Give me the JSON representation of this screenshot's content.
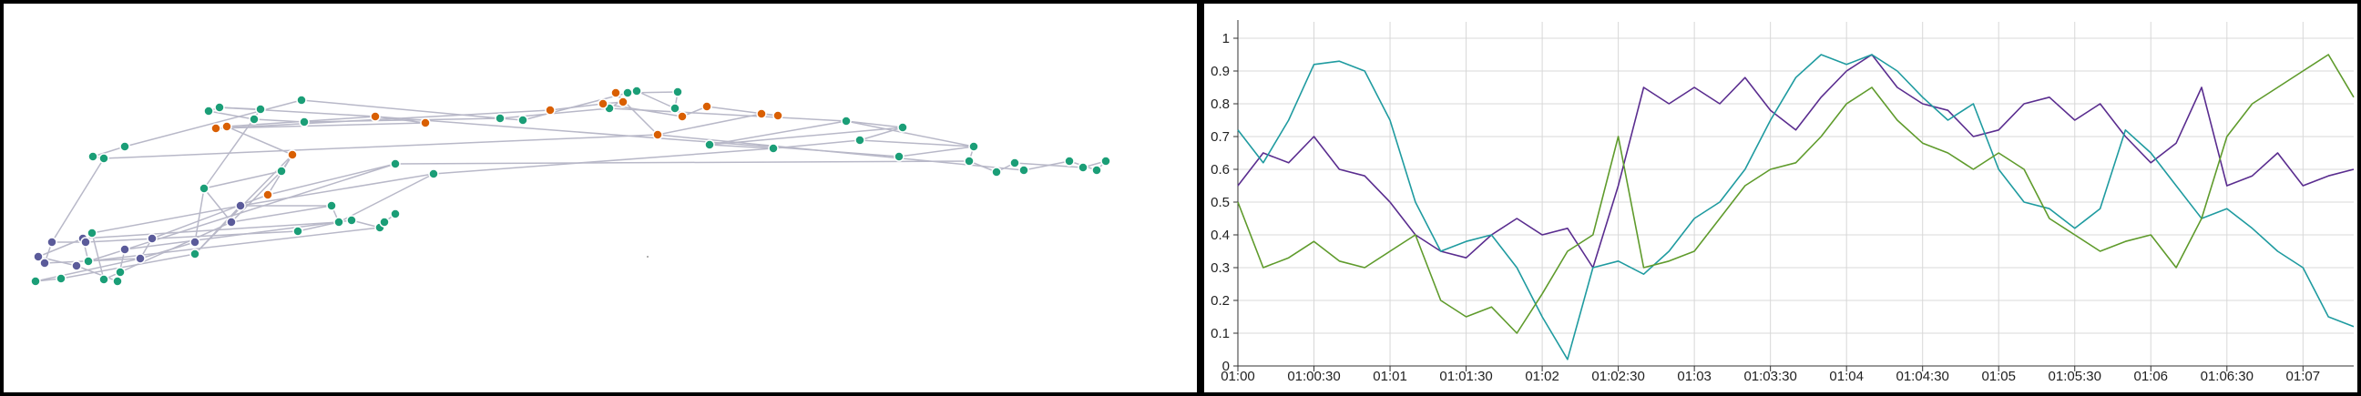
{
  "network_graph": {
    "colors": {
      "node_green": "#1b9e77",
      "node_purple": "#5b5b9a",
      "node_orange": "#d95f02",
      "edge": "#b8b8c8"
    },
    "node_counts": {
      "green": 48,
      "purple": 12,
      "orange": 14
    }
  },
  "chart_data": {
    "type": "line",
    "title": "",
    "xlabel": "",
    "ylabel": "",
    "ylim": [
      0,
      1.05
    ],
    "yticks": [
      "0",
      "0.1",
      "0.2",
      "0.3",
      "0.4",
      "0.5",
      "0.6",
      "0.7",
      "0.8",
      "0.9",
      "1"
    ],
    "xlim": [
      "01:00:00",
      "01:07:20"
    ],
    "xticks": [
      "01:00",
      "01:00:30",
      "01:01",
      "01:01:30",
      "01:02",
      "01:02:30",
      "01:03",
      "01:03:30",
      "01:04",
      "01:04:30",
      "01:05",
      "01:05:30",
      "01:06",
      "01:06:30",
      "01:07"
    ],
    "grid": true,
    "legend": "none",
    "series": [
      {
        "color": "#5a2d8f",
        "points": [
          [
            "01:00:00",
            0.55
          ],
          [
            "01:00:10",
            0.65
          ],
          [
            "01:00:20",
            0.62
          ],
          [
            "01:00:30",
            0.7
          ],
          [
            "01:00:40",
            0.6
          ],
          [
            "01:00:50",
            0.58
          ],
          [
            "01:01:00",
            0.5
          ],
          [
            "01:01:10",
            0.4
          ],
          [
            "01:01:20",
            0.35
          ],
          [
            "01:01:30",
            0.33
          ],
          [
            "01:01:40",
            0.4
          ],
          [
            "01:01:50",
            0.45
          ],
          [
            "01:02:00",
            0.4
          ],
          [
            "01:02:10",
            0.42
          ],
          [
            "01:02:20",
            0.3
          ],
          [
            "01:02:30",
            0.55
          ],
          [
            "01:02:40",
            0.85
          ],
          [
            "01:02:50",
            0.8
          ],
          [
            "01:03:00",
            0.85
          ],
          [
            "01:03:10",
            0.8
          ],
          [
            "01:03:20",
            0.88
          ],
          [
            "01:03:30",
            0.78
          ],
          [
            "01:03:40",
            0.72
          ],
          [
            "01:03:50",
            0.82
          ],
          [
            "01:04:00",
            0.9
          ],
          [
            "01:04:10",
            0.95
          ],
          [
            "01:04:20",
            0.85
          ],
          [
            "01:04:30",
            0.8
          ],
          [
            "01:04:40",
            0.78
          ],
          [
            "01:04:50",
            0.7
          ],
          [
            "01:05:00",
            0.72
          ],
          [
            "01:05:10",
            0.8
          ],
          [
            "01:05:20",
            0.82
          ],
          [
            "01:05:30",
            0.75
          ],
          [
            "01:05:40",
            0.8
          ],
          [
            "01:05:50",
            0.7
          ],
          [
            "01:06:00",
            0.62
          ],
          [
            "01:06:10",
            0.68
          ],
          [
            "01:06:20",
            0.85
          ],
          [
            "01:06:30",
            0.55
          ],
          [
            "01:06:40",
            0.58
          ],
          [
            "01:06:50",
            0.65
          ],
          [
            "01:07:00",
            0.55
          ],
          [
            "01:07:10",
            0.58
          ],
          [
            "01:07:20",
            0.6
          ]
        ]
      },
      {
        "color": "#1f9ba0",
        "points": [
          [
            "01:00:00",
            0.72
          ],
          [
            "01:00:10",
            0.62
          ],
          [
            "01:00:20",
            0.75
          ],
          [
            "01:00:30",
            0.92
          ],
          [
            "01:00:40",
            0.93
          ],
          [
            "01:00:50",
            0.9
          ],
          [
            "01:01:00",
            0.75
          ],
          [
            "01:01:10",
            0.5
          ],
          [
            "01:01:20",
            0.35
          ],
          [
            "01:01:30",
            0.38
          ],
          [
            "01:01:40",
            0.4
          ],
          [
            "01:01:50",
            0.3
          ],
          [
            "01:02:00",
            0.15
          ],
          [
            "01:02:10",
            0.02
          ],
          [
            "01:02:20",
            0.3
          ],
          [
            "01:02:30",
            0.32
          ],
          [
            "01:02:40",
            0.28
          ],
          [
            "01:02:50",
            0.35
          ],
          [
            "01:03:00",
            0.45
          ],
          [
            "01:03:10",
            0.5
          ],
          [
            "01:03:20",
            0.6
          ],
          [
            "01:03:30",
            0.75
          ],
          [
            "01:03:40",
            0.88
          ],
          [
            "01:03:50",
            0.95
          ],
          [
            "01:04:00",
            0.92
          ],
          [
            "01:04:10",
            0.95
          ],
          [
            "01:04:20",
            0.9
          ],
          [
            "01:04:30",
            0.82
          ],
          [
            "01:04:40",
            0.75
          ],
          [
            "01:04:50",
            0.8
          ],
          [
            "01:05:00",
            0.6
          ],
          [
            "01:05:10",
            0.5
          ],
          [
            "01:05:20",
            0.48
          ],
          [
            "01:05:30",
            0.42
          ],
          [
            "01:05:40",
            0.48
          ],
          [
            "01:05:50",
            0.72
          ],
          [
            "01:06:00",
            0.65
          ],
          [
            "01:06:10",
            0.55
          ],
          [
            "01:06:20",
            0.45
          ],
          [
            "01:06:30",
            0.48
          ],
          [
            "01:06:40",
            0.42
          ],
          [
            "01:06:50",
            0.35
          ],
          [
            "01:07:00",
            0.3
          ],
          [
            "01:07:10",
            0.15
          ],
          [
            "01:07:20",
            0.12
          ]
        ]
      },
      {
        "color": "#5f9b2c",
        "points": [
          [
            "01:00:00",
            0.5
          ],
          [
            "01:00:10",
            0.3
          ],
          [
            "01:00:20",
            0.33
          ],
          [
            "01:00:30",
            0.38
          ],
          [
            "01:00:40",
            0.32
          ],
          [
            "01:00:50",
            0.3
          ],
          [
            "01:01:00",
            0.35
          ],
          [
            "01:01:10",
            0.4
          ],
          [
            "01:01:20",
            0.2
          ],
          [
            "01:01:30",
            0.15
          ],
          [
            "01:01:40",
            0.18
          ],
          [
            "01:01:50",
            0.1
          ],
          [
            "01:02:00",
            0.22
          ],
          [
            "01:02:10",
            0.35
          ],
          [
            "01:02:20",
            0.4
          ],
          [
            "01:02:30",
            0.7
          ],
          [
            "01:02:40",
            0.3
          ],
          [
            "01:02:50",
            0.32
          ],
          [
            "01:03:00",
            0.35
          ],
          [
            "01:03:10",
            0.45
          ],
          [
            "01:03:20",
            0.55
          ],
          [
            "01:03:30",
            0.6
          ],
          [
            "01:03:40",
            0.62
          ],
          [
            "01:03:50",
            0.7
          ],
          [
            "01:04:00",
            0.8
          ],
          [
            "01:04:10",
            0.85
          ],
          [
            "01:04:20",
            0.75
          ],
          [
            "01:04:30",
            0.68
          ],
          [
            "01:04:40",
            0.65
          ],
          [
            "01:04:50",
            0.6
          ],
          [
            "01:05:00",
            0.65
          ],
          [
            "01:05:10",
            0.6
          ],
          [
            "01:05:20",
            0.45
          ],
          [
            "01:05:30",
            0.4
          ],
          [
            "01:05:40",
            0.35
          ],
          [
            "01:05:50",
            0.38
          ],
          [
            "01:06:00",
            0.4
          ],
          [
            "01:06:10",
            0.3
          ],
          [
            "01:06:20",
            0.45
          ],
          [
            "01:06:30",
            0.7
          ],
          [
            "01:06:40",
            0.8
          ],
          [
            "01:06:50",
            0.85
          ],
          [
            "01:07:00",
            0.9
          ],
          [
            "01:07:10",
            0.95
          ],
          [
            "01:07:20",
            0.82
          ]
        ]
      }
    ]
  }
}
